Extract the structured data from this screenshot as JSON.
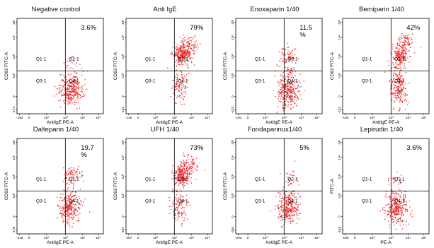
{
  "chart_data": [
    {
      "type": "scatter",
      "title": "Negative control",
      "ylabel": "CD63 FITC-A",
      "xlabel": "AntiIgE PE-A",
      "quadrants": [
        "Q1-1",
        "Q2-1",
        "Q3-1",
        "Q4-1"
      ],
      "percent_lines": [
        "3.6%"
      ],
      "y_ticks": [
        "-174",
        "0",
        "10²",
        "10³",
        "10⁴",
        "10⁵"
      ],
      "x_ticks": [
        "-182",
        "0",
        "10²",
        "10³",
        "10⁴",
        "10⁵"
      ],
      "clusters": [
        {
          "cx": 0.62,
          "cy": 0.26,
          "sx": 0.07,
          "sy": 0.08,
          "n": 320
        },
        {
          "cx": 0.62,
          "cy": 0.56,
          "sx": 0.05,
          "sy": 0.04,
          "n": 18
        }
      ]
    },
    {
      "type": "scatter",
      "title": "Anti IgE",
      "ylabel": "CD63 FITC-A",
      "xlabel": "AntiIgE PE-A",
      "quadrants": [
        "Q1-1",
        "Q2-1",
        "Q3-1",
        "Q4-1"
      ],
      "percent_lines": [
        "79%"
      ],
      "y_ticks": [
        "-191",
        "0",
        "10²",
        "10³",
        "10⁴",
        "10⁵"
      ],
      "x_ticks": [
        "-140",
        "0",
        "10²",
        "10³",
        "10⁴",
        "10⁵"
      ],
      "clusters": [
        {
          "cx": 0.64,
          "cy": 0.62,
          "sx": 0.05,
          "sy": 0.05,
          "n": 260
        },
        {
          "cx": 0.72,
          "cy": 0.72,
          "sx": 0.06,
          "sy": 0.05,
          "n": 90
        },
        {
          "cx": 0.62,
          "cy": 0.3,
          "sx": 0.05,
          "sy": 0.09,
          "n": 110
        }
      ]
    },
    {
      "type": "scatter",
      "title": "Enoxaparin 1/40",
      "ylabel": "CD63 FITC-A",
      "xlabel": "AntiIgE PE-A",
      "quadrants": [
        "Q1-1",
        "Q2-1",
        "Q3-1",
        "Q4-1"
      ],
      "percent_lines": [
        "11.5",
        "%"
      ],
      "y_ticks": [
        "-423",
        "0",
        "10²",
        "10³",
        "10⁴",
        "10⁵"
      ],
      "x_ticks": [
        "-191",
        "0",
        "10²",
        "10³",
        "10⁴",
        "10⁵"
      ],
      "clusters": [
        {
          "cx": 0.6,
          "cy": 0.25,
          "sx": 0.06,
          "sy": 0.09,
          "n": 330
        },
        {
          "cx": 0.6,
          "cy": 0.58,
          "sx": 0.05,
          "sy": 0.08,
          "n": 90
        }
      ]
    },
    {
      "type": "scatter",
      "title": "Bemiparin 1/40",
      "ylabel": "CD63 FITC-A",
      "xlabel": "AntiIgE PE-A",
      "quadrants": [
        "Q1-1",
        "Q2-1",
        "Q3-1",
        "Q4-1"
      ],
      "percent_lines": [
        "42%"
      ],
      "y_ticks": [
        "-152",
        "0",
        "10²",
        "10³",
        "10⁴",
        "10⁵"
      ],
      "x_ticks": [
        "-104",
        "0",
        "10²",
        "10³",
        "10⁴",
        "10⁵"
      ],
      "clusters": [
        {
          "cx": 0.66,
          "cy": 0.62,
          "sx": 0.05,
          "sy": 0.06,
          "n": 180
        },
        {
          "cx": 0.72,
          "cy": 0.76,
          "sx": 0.05,
          "sy": 0.05,
          "n": 70
        },
        {
          "cx": 0.64,
          "cy": 0.28,
          "sx": 0.05,
          "sy": 0.1,
          "n": 230
        }
      ]
    },
    {
      "type": "scatter",
      "title": "Dalteparin 1/40",
      "ylabel": "CD63 FITC-A",
      "xlabel": "AntiIgE PE-A",
      "quadrants": [
        "Q1-1",
        "Q2-1",
        "Q3-1",
        "Q4-1"
      ],
      "percent_lines": [
        "19.7",
        "%"
      ],
      "y_ticks": [
        "-178",
        "0",
        "10²",
        "10³",
        "10⁴",
        "10⁵"
      ],
      "x_ticks": [
        "-219",
        "0",
        "10²",
        "10³",
        "10⁴",
        "10⁵"
      ],
      "clusters": [
        {
          "cx": 0.6,
          "cy": 0.28,
          "sx": 0.06,
          "sy": 0.09,
          "n": 280
        },
        {
          "cx": 0.64,
          "cy": 0.62,
          "sx": 0.05,
          "sy": 0.05,
          "n": 80
        }
      ]
    },
    {
      "type": "scatter",
      "title": "UFH 1/40",
      "ylabel": "CD63 FITC-A",
      "xlabel": "AntiIgE PE-A",
      "quadrants": [
        "Q1-1",
        "Q2-1",
        "Q3-1",
        "Q4-1"
      ],
      "percent_lines": [
        "73%"
      ],
      "y_ticks": [
        "-197",
        "0",
        "10²",
        "10³",
        "10⁴",
        "10⁵"
      ],
      "x_ticks": [
        "-187",
        "0",
        "10²",
        "10³",
        "10⁴",
        "10⁵"
      ],
      "clusters": [
        {
          "cx": 0.64,
          "cy": 0.62,
          "sx": 0.05,
          "sy": 0.05,
          "n": 230
        },
        {
          "cx": 0.72,
          "cy": 0.72,
          "sx": 0.06,
          "sy": 0.05,
          "n": 90
        },
        {
          "cx": 0.6,
          "cy": 0.3,
          "sx": 0.05,
          "sy": 0.09,
          "n": 120
        }
      ]
    },
    {
      "type": "scatter",
      "title": "Fondaparinux1/40",
      "ylabel": "CD63 FITC-A",
      "xlabel": "AntiIgE PE-A",
      "quadrants": [
        "Q1-1",
        "Q2-1",
        "Q3-1",
        "Q4-1"
      ],
      "percent_lines": [
        "5%"
      ],
      "y_ticks": [
        "-264",
        "0",
        "10²",
        "10³",
        "10⁴",
        "10⁵"
      ],
      "x_ticks": [
        "-203",
        "0",
        "10²",
        "10³",
        "10⁴",
        "10⁵"
      ],
      "clusters": [
        {
          "cx": 0.6,
          "cy": 0.28,
          "sx": 0.06,
          "sy": 0.09,
          "n": 320
        },
        {
          "cx": 0.62,
          "cy": 0.58,
          "sx": 0.04,
          "sy": 0.05,
          "n": 30
        }
      ]
    },
    {
      "type": "scatter",
      "title": "Lepirudin 1/40",
      "ylabel": "FITC-A",
      "xlabel": "PE-A",
      "quadrants": [
        "Q1-1",
        "Q2-1",
        "Q3-1",
        "Q4-1"
      ],
      "percent_lines": [
        "3.6%"
      ],
      "y_ticks": [
        "-153",
        "0",
        "10²",
        "10³",
        "10⁴",
        "10⁵"
      ],
      "x_ticks": [
        "-180",
        "0",
        "10²",
        "10³",
        "10⁴",
        "10⁵"
      ],
      "clusters": [
        {
          "cx": 0.62,
          "cy": 0.28,
          "sx": 0.06,
          "sy": 0.09,
          "n": 300
        },
        {
          "cx": 0.62,
          "cy": 0.58,
          "sx": 0.04,
          "sy": 0.04,
          "n": 20
        }
      ]
    }
  ],
  "colors": {
    "dot": "#e8282b",
    "axis": "#000000",
    "background": "#ffffff"
  }
}
